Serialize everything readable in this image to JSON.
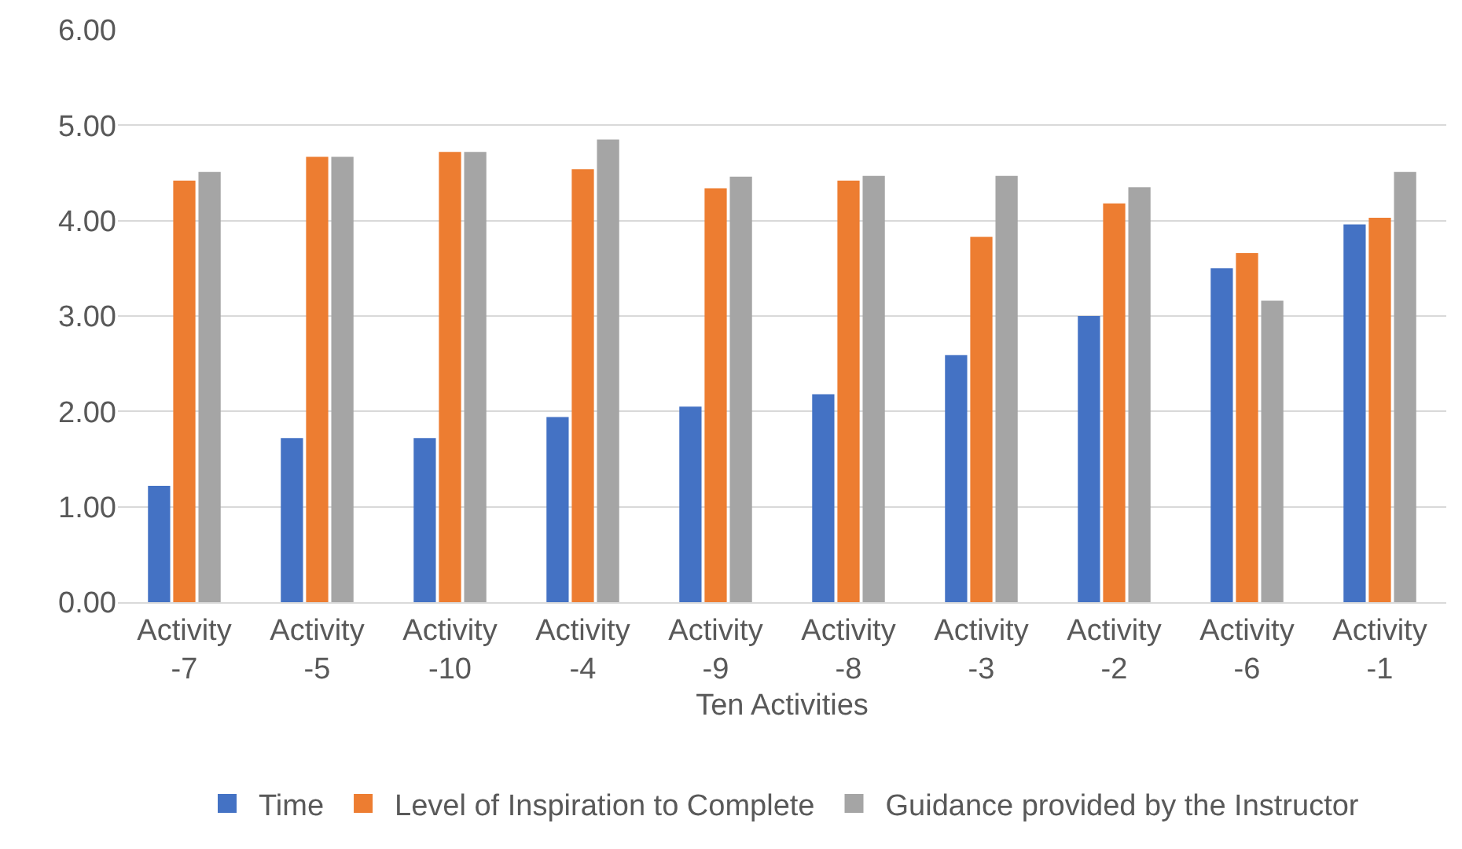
{
  "chart_data": {
    "type": "bar",
    "xlabel": "Ten Activities",
    "categories": [
      "Activity -7",
      "Activity -5",
      "Activity -10",
      "Activity -4",
      "Activity -9",
      "Activity -8",
      "Activity -3",
      "Activity -2",
      "Activity -6",
      "Activity -1"
    ],
    "series": [
      {
        "name": "Time",
        "color": "#4472c4",
        "values": [
          1.22,
          1.72,
          1.72,
          1.94,
          2.05,
          2.18,
          2.59,
          3.0,
          3.5,
          3.96
        ]
      },
      {
        "name": "Level of Inspiration to Complete",
        "color": "#ed7d31",
        "values": [
          4.42,
          4.67,
          4.72,
          4.54,
          4.34,
          4.42,
          3.83,
          4.18,
          3.66,
          4.03
        ]
      },
      {
        "name": "Guidance provided by the Instructor",
        "color": "#a5a5a5",
        "values": [
          4.51,
          4.67,
          4.72,
          4.85,
          4.46,
          4.47,
          4.47,
          4.35,
          3.16,
          4.51
        ]
      }
    ],
    "ylim": [
      0,
      6
    ],
    "yticks": [
      {
        "value": 0,
        "label": "0.00"
      },
      {
        "value": 1,
        "label": "1.00"
      },
      {
        "value": 2,
        "label": "2.00"
      },
      {
        "value": 3,
        "label": "3.00"
      },
      {
        "value": 4,
        "label": "4.00"
      },
      {
        "value": 5,
        "label": "5.00"
      },
      {
        "value": 6,
        "label": "6.00"
      }
    ],
    "grid": "y",
    "legend": "bottom"
  }
}
